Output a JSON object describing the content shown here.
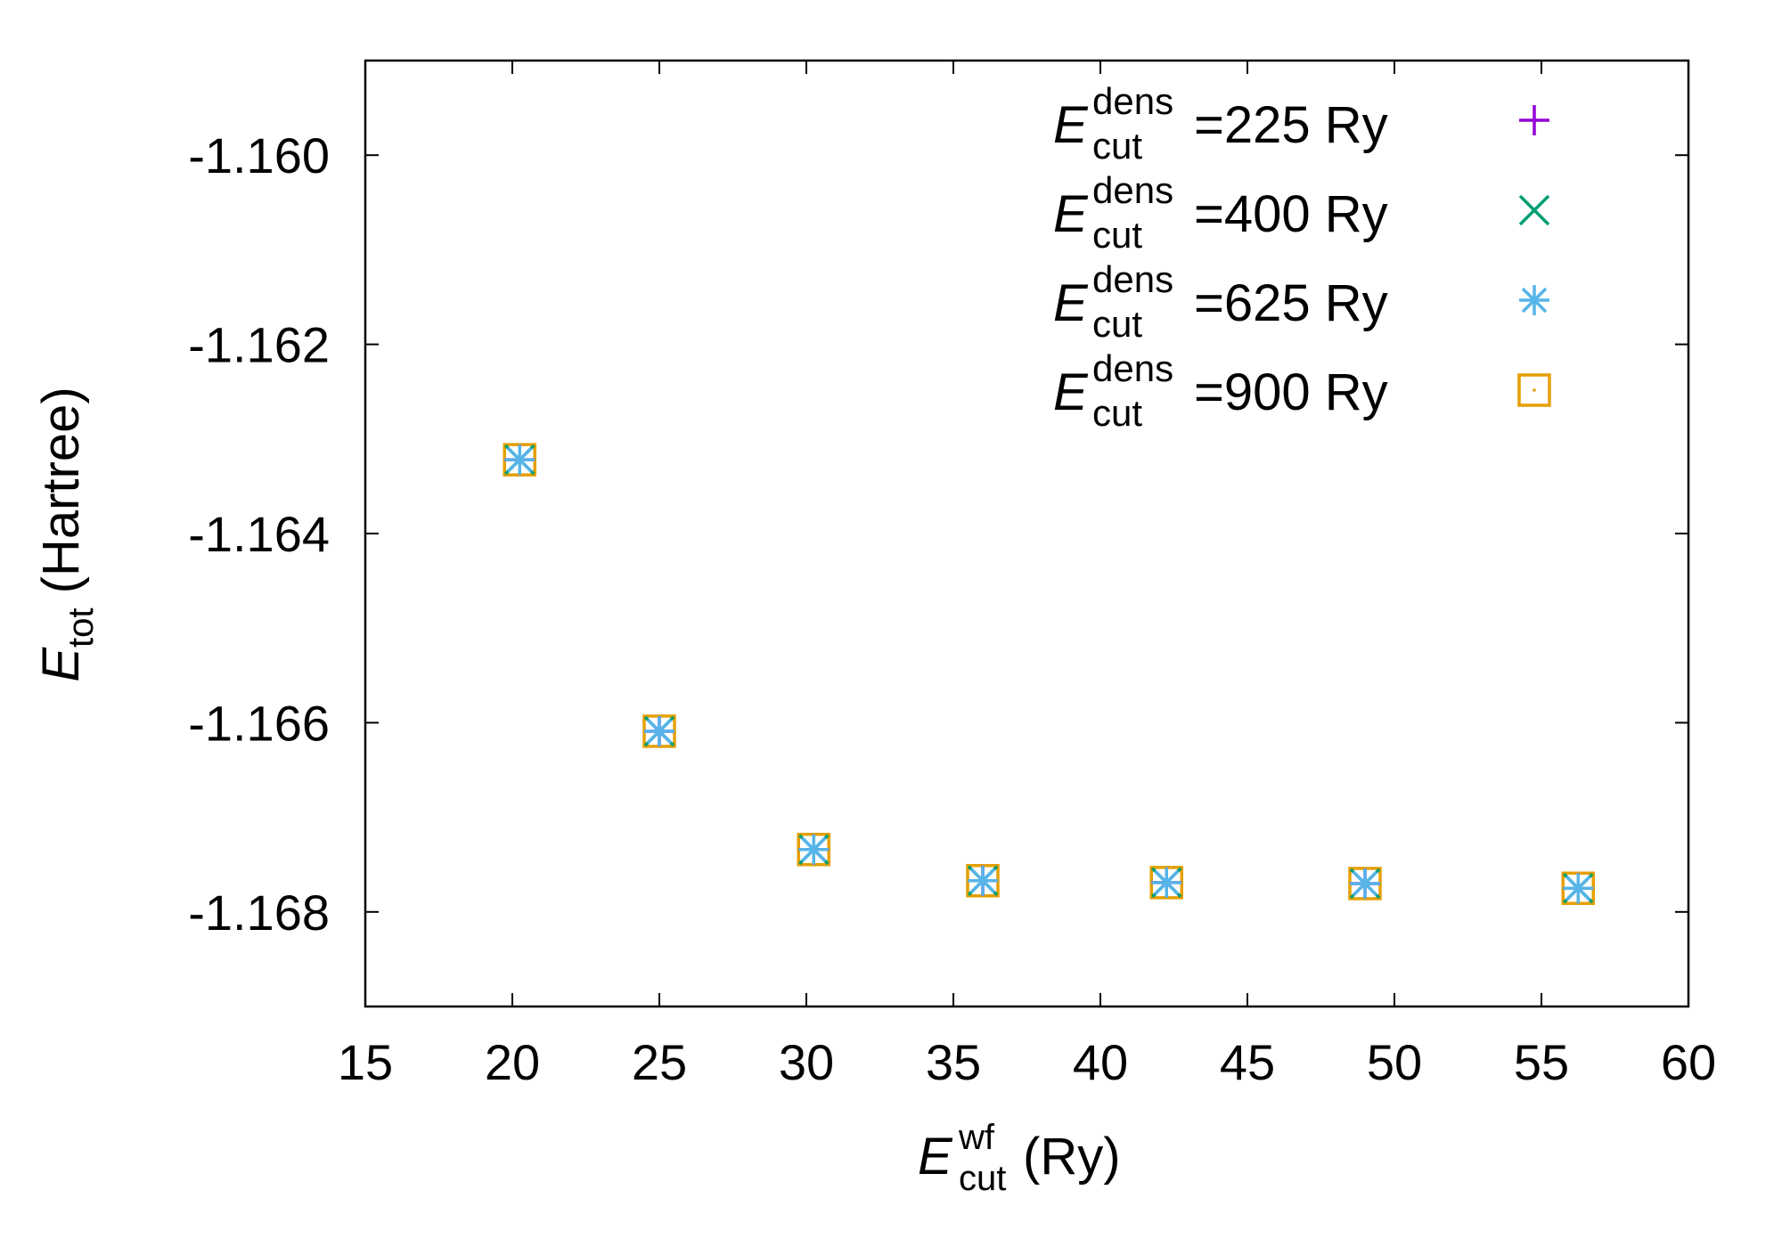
{
  "chart_data": {
    "type": "scatter",
    "xlabel": {
      "main": "E",
      "sub": "cut",
      "sup": "wf",
      "suffix": "(Ry)"
    },
    "ylabel": {
      "main": "E",
      "sub": "tot",
      "suffix": " (Hartree)"
    },
    "xlim": [
      15,
      60
    ],
    "ylim": [
      -1.169,
      -1.159
    ],
    "xticks": [
      15,
      20,
      25,
      30,
      35,
      40,
      45,
      50,
      55,
      60
    ],
    "yticks": [
      -1.16,
      -1.162,
      -1.164,
      -1.166,
      -1.168
    ],
    "ytick_labels": [
      "-1.160",
      "-1.162",
      "-1.164",
      "-1.166",
      "-1.168"
    ],
    "grid": false,
    "legend_position": "top-right",
    "x": [
      20.25,
      25.0,
      30.25,
      36.0,
      42.25,
      49.0,
      56.25
    ],
    "series": [
      {
        "name": {
          "main": "E",
          "sub": "cut",
          "sup": "dens",
          "suffix": "=225 Ry"
        },
        "marker": "plus",
        "color": "#9400d3",
        "values": [
          -1.16322,
          -1.16609,
          -1.16734,
          -1.16767,
          -1.16769,
          -1.1677,
          -1.16775
        ]
      },
      {
        "name": {
          "main": "E",
          "sub": "cut",
          "sup": "dens",
          "suffix": "=400 Ry"
        },
        "marker": "cross",
        "color": "#009e73",
        "values": [
          -1.16322,
          -1.16609,
          -1.16734,
          -1.16767,
          -1.16769,
          -1.1677,
          -1.16775
        ]
      },
      {
        "name": {
          "main": "E",
          "sub": "cut",
          "sup": "dens",
          "suffix": "=625 Ry"
        },
        "marker": "star",
        "color": "#56b4e9",
        "values": [
          -1.16322,
          -1.16609,
          -1.16734,
          -1.16767,
          -1.16769,
          -1.1677,
          -1.16775
        ]
      },
      {
        "name": {
          "main": "E",
          "sub": "cut",
          "sup": "dens",
          "suffix": "=900 Ry"
        },
        "marker": "square",
        "color": "#e69f00",
        "values": [
          -1.16322,
          -1.16609,
          -1.16734,
          -1.16767,
          -1.16769,
          -1.1677,
          -1.16775
        ]
      }
    ]
  }
}
